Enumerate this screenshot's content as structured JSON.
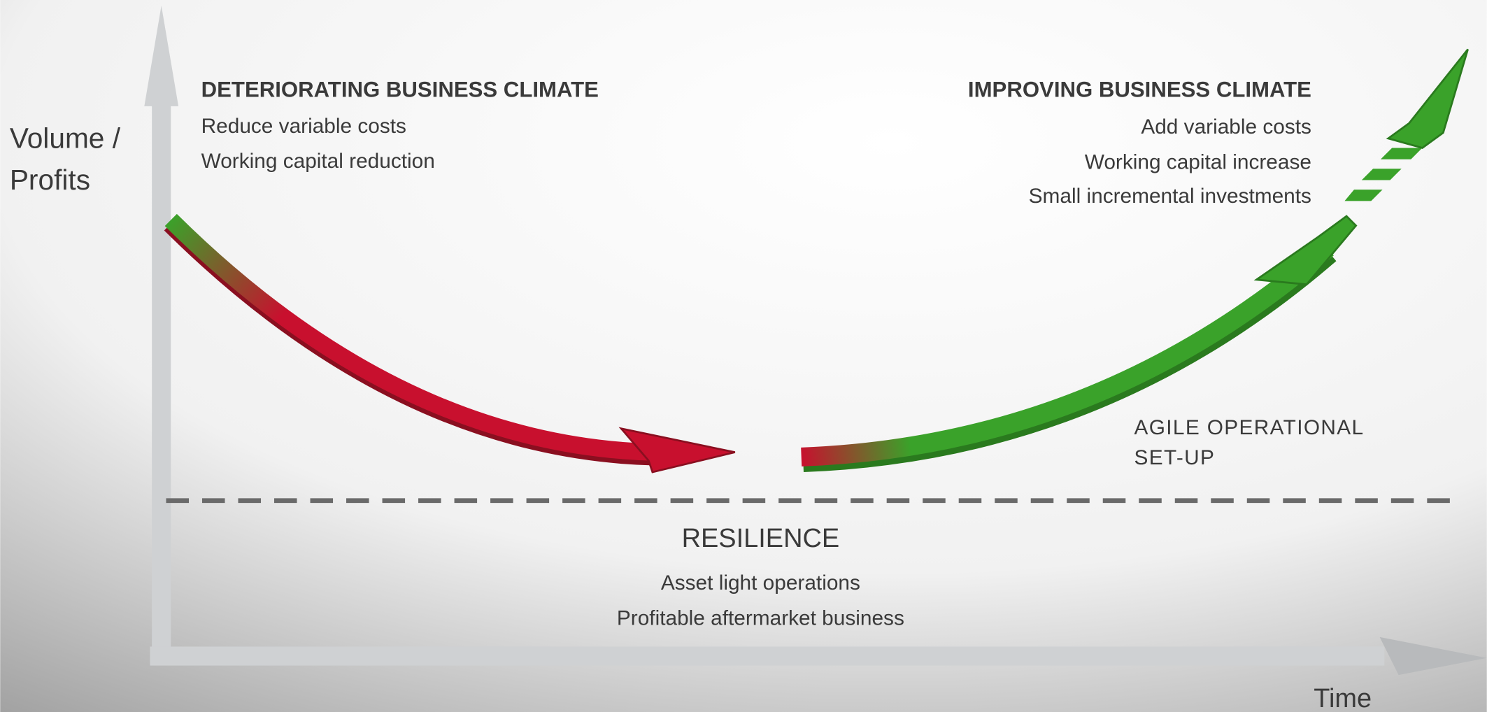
{
  "axes": {
    "y_label_lines": [
      "Volume /",
      "Profits"
    ],
    "x_label": "Time"
  },
  "left_panel": {
    "title": "DETERIORATING BUSINESS CLIMATE",
    "items": [
      "Reduce variable costs",
      "Working capital reduction"
    ]
  },
  "right_panel": {
    "title": "IMPROVING BUSINESS CLIMATE",
    "items": [
      "Add variable costs",
      "Working capital increase",
      "Small incremental investments"
    ]
  },
  "agile_lines": [
    "AGILE OPERATIONAL",
    "SET-UP"
  ],
  "resilience": {
    "title": "RESILIENCE",
    "items": [
      "Asset light operations",
      "Profitable aftermarket business"
    ]
  }
}
